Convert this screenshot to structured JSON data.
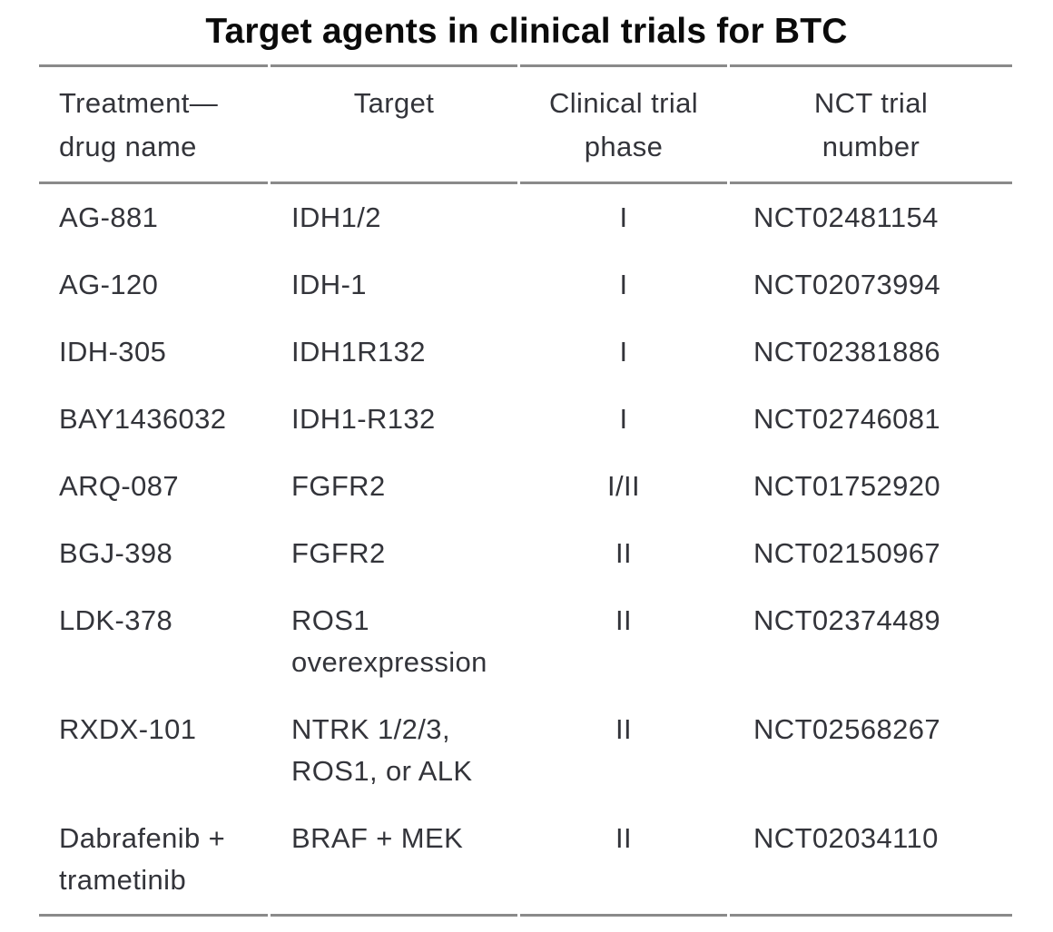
{
  "title": "Target agents in clinical trials for BTC",
  "colors": {
    "text": "#33343a",
    "title": "#0b0b0b",
    "rule": "#8a8a8a",
    "background": "#ffffff"
  },
  "table": {
    "headers": {
      "drug": "Treatment—\ndrug name",
      "target": "Target",
      "phase": "Clinical trial\nphase",
      "nct": "NCT trial\nnumber"
    },
    "rows": [
      {
        "drug": "AG-881",
        "target": "IDH1/2",
        "phase": "I",
        "nct": "NCT02481154"
      },
      {
        "drug": "AG-120",
        "target": "IDH-1",
        "phase": "I",
        "nct": "NCT02073994"
      },
      {
        "drug": "IDH-305",
        "target": "IDH1R132",
        "phase": "I",
        "nct": "NCT02381886"
      },
      {
        "drug": "BAY1436032",
        "target": "IDH1-R132",
        "phase": "I",
        "nct": "NCT02746081"
      },
      {
        "drug": "ARQ-087",
        "target": "FGFR2",
        "phase": "I/II",
        "nct": "NCT01752920"
      },
      {
        "drug": "BGJ-398",
        "target": "FGFR2",
        "phase": "II",
        "nct": "NCT02150967"
      },
      {
        "drug": "LDK-378",
        "target": "ROS1\noverexpression",
        "phase": "II",
        "nct": "NCT02374489"
      },
      {
        "drug": "RXDX-101",
        "target": "NTRK 1/2/3,\nROS1, or ALK",
        "phase": "II",
        "nct": "NCT02568267"
      },
      {
        "drug": "Dabrafenib +\ntrametinib",
        "target": "BRAF + MEK",
        "phase": "II",
        "nct": "NCT02034110"
      }
    ]
  }
}
